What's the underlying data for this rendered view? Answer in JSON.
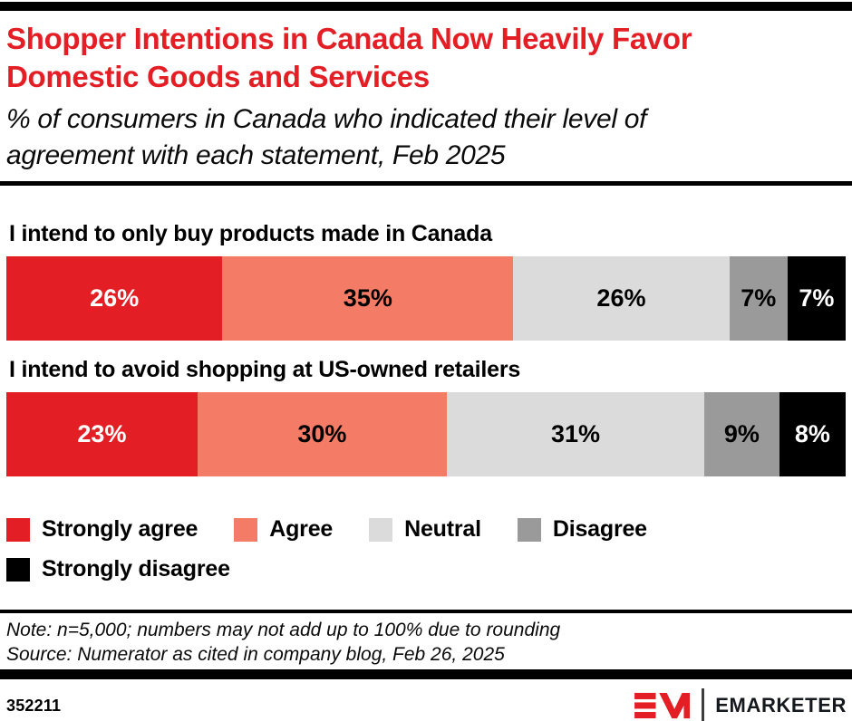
{
  "header": {
    "title_lines": [
      "Shopper Intentions in Canada Now Heavily Favor",
      "Domestic Goods and Services"
    ],
    "subtitle_lines": [
      "% of consumers in Canada who indicated their level of",
      "agreement with each statement, Feb 2025"
    ]
  },
  "chart_data": {
    "type": "bar",
    "variant": "horizontal-stacked-100",
    "title": "Shopper Intentions in Canada Now Heavily Favor Domestic Goods and Services",
    "subtitle": "% of consumers in Canada who indicated their level of agreement with each statement, Feb 2025",
    "categories": [
      "I intend to only buy products made in Canada",
      "I intend to avoid shopping at US-owned retailers"
    ],
    "series": [
      {
        "name": "Strongly agree",
        "color": "#E31E25",
        "text_color": "#FFFFFF",
        "values": [
          26,
          23
        ]
      },
      {
        "name": "Agree",
        "color": "#F47C66",
        "text_color": "#000000",
        "values": [
          35,
          30
        ]
      },
      {
        "name": "Neutral",
        "color": "#DBDBDB",
        "text_color": "#000000",
        "values": [
          26,
          31
        ]
      },
      {
        "name": "Disagree",
        "color": "#9A9A9A",
        "text_color": "#000000",
        "values": [
          7,
          9
        ]
      },
      {
        "name": "Strongly disagree",
        "color": "#000000",
        "text_color": "#FFFFFF",
        "values": [
          7,
          8
        ]
      }
    ],
    "value_suffix": "%",
    "legend_position": "bottom",
    "axis": "none",
    "grid": false
  },
  "legend": {
    "items": [
      {
        "label": "Strongly agree",
        "color": "#E31E25"
      },
      {
        "label": "Agree",
        "color": "#F47C66"
      },
      {
        "label": "Neutral",
        "color": "#DBDBDB"
      },
      {
        "label": "Disagree",
        "color": "#9A9A9A"
      },
      {
        "label": "Strongly disagree",
        "color": "#000000"
      }
    ]
  },
  "footer": {
    "note": "Note: n=5,000; numbers may not add up to 100% due to rounding",
    "source": "Source: Numerator as cited in company blog, Feb 26, 2025",
    "chart_id": "352211",
    "brand_name": "EMARKETER"
  },
  "colors": {
    "accent_red": "#E31E25",
    "salmon": "#F47C66",
    "light_gray": "#DBDBDB",
    "mid_gray": "#9A9A9A",
    "black": "#000000",
    "brand_text": "#15191D"
  }
}
